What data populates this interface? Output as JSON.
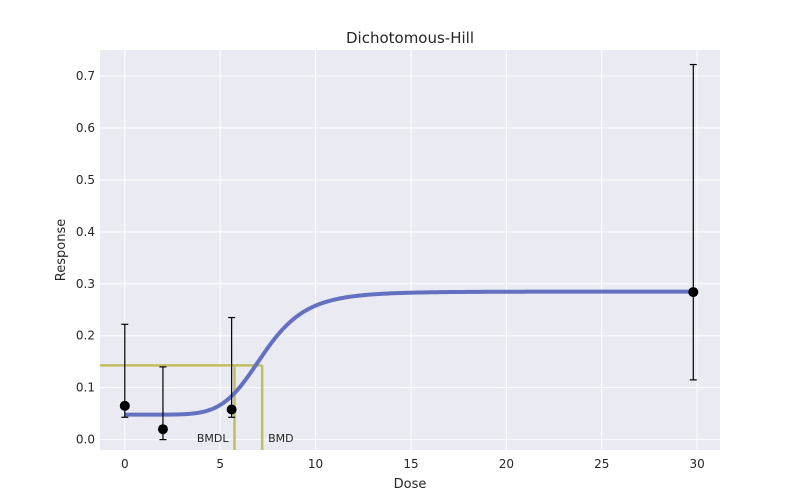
{
  "chart_data": {
    "type": "line",
    "title": "Dichotomous-Hill",
    "xlabel": "Dose",
    "ylabel": "Response",
    "xlim": [
      -1.3,
      31.2
    ],
    "ylim": [
      -0.02,
      0.75
    ],
    "xticks": [
      0,
      5,
      10,
      15,
      20,
      25,
      30
    ],
    "yticks": [
      0.0,
      0.1,
      0.2,
      0.3,
      0.4,
      0.5,
      0.6,
      0.7
    ],
    "grid": true,
    "background": "#EAEAF2",
    "observed": {
      "x": [
        0,
        2,
        5.6,
        29.8
      ],
      "y": [
        0.065,
        0.02,
        0.058,
        0.284
      ],
      "error_lower": [
        0.043,
        0.0,
        0.043,
        0.115
      ],
      "error_upper": [
        0.222,
        0.14,
        0.235,
        0.722
      ],
      "color": "#000000"
    },
    "model_curve": {
      "background": 0.048,
      "plateau": 0.285,
      "ec50": 7.3,
      "hill": 6.5,
      "x_range": [
        0,
        29.8
      ],
      "color": "#6470C0"
    },
    "bmd": {
      "bmr_response": 0.143,
      "bmdl": 5.75,
      "bmd": 7.2,
      "bmdl_label": "BMDL",
      "bmd_label": "BMD",
      "color": "#BFBF60"
    }
  }
}
